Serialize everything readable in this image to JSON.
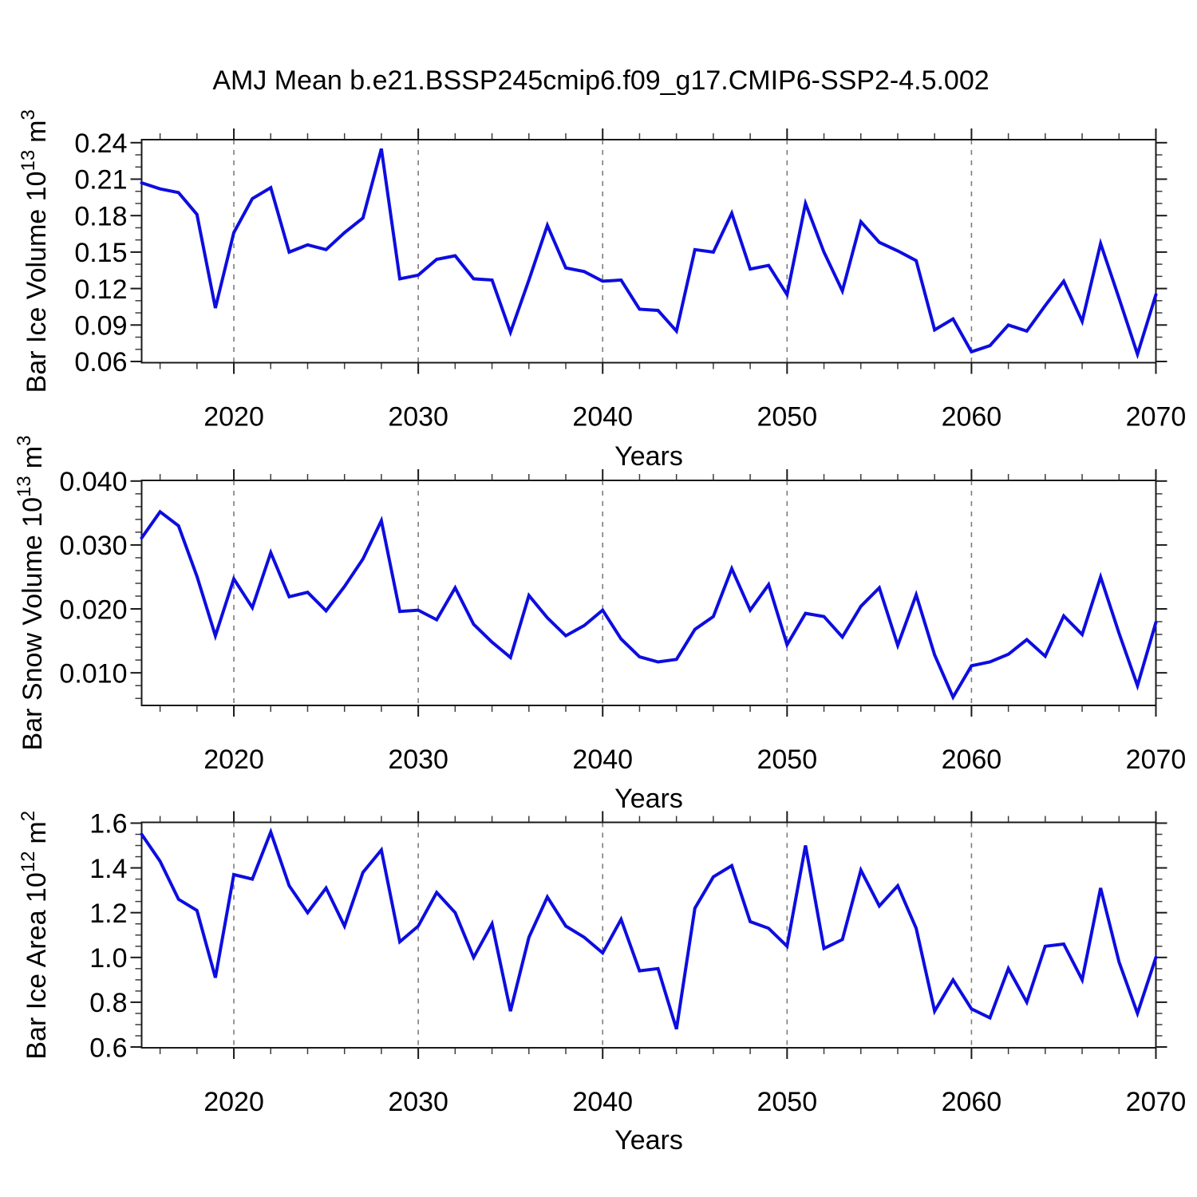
{
  "title": "AMJ Mean b.e21.BSSP245cmip6.f09_g17.CMIP6-SSP2-4.5.002",
  "style": {
    "line_color": "#0d0de0",
    "axis_color": "#1a1a1a",
    "grid_color": "#7d7d7d",
    "background": "#ffffff"
  },
  "x_axis": {
    "label": "Years",
    "range": [
      2015,
      2070
    ],
    "major_ticks": [
      2020,
      2030,
      2040,
      2050,
      2060,
      2070
    ],
    "major_tick_labels": [
      "2020",
      "2030",
      "2040",
      "2050",
      "2060",
      "2070"
    ],
    "minor_tick_step": 2,
    "gridline_years": [
      2020,
      2030,
      2040,
      2050,
      2060
    ]
  },
  "chart_data": [
    {
      "type": "line",
      "id": "bar-ice-volume",
      "ylabel": {
        "prefix": "Bar Ice Volume 10",
        "sup1": "13",
        "unit": "m",
        "unit_sup": "3",
        "plain": "Bar Ice Volume 10^13 m^3"
      },
      "xlabel": "Years",
      "ylim": [
        0.059,
        0.2425
      ],
      "ytick_values": [
        0.06,
        0.09,
        0.12,
        0.15,
        0.18,
        0.21,
        0.24
      ],
      "ytick_labels": [
        "0.06",
        "0.09",
        "0.12",
        "0.15",
        "0.18",
        "0.21",
        "0.24"
      ],
      "yminor_step": 0.01,
      "x": [
        2015,
        2016,
        2017,
        2018,
        2019,
        2020,
        2021,
        2022,
        2023,
        2024,
        2025,
        2026,
        2027,
        2028,
        2029,
        2030,
        2031,
        2032,
        2033,
        2034,
        2035,
        2036,
        2037,
        2038,
        2039,
        2040,
        2041,
        2042,
        2043,
        2044,
        2045,
        2046,
        2047,
        2048,
        2049,
        2050,
        2051,
        2052,
        2053,
        2054,
        2055,
        2056,
        2057,
        2058,
        2059,
        2060,
        2061,
        2062,
        2063,
        2064,
        2065,
        2066,
        2067,
        2068,
        2069,
        2070
      ],
      "values": [
        0.207,
        0.202,
        0.199,
        0.181,
        0.104,
        0.166,
        0.194,
        0.203,
        0.15,
        0.156,
        0.152,
        0.166,
        0.178,
        0.235,
        0.128,
        0.131,
        0.144,
        0.147,
        0.128,
        0.127,
        0.084,
        0.127,
        0.172,
        0.137,
        0.134,
        0.126,
        0.127,
        0.103,
        0.102,
        0.085,
        0.152,
        0.15,
        0.182,
        0.136,
        0.139,
        0.115,
        0.19,
        0.15,
        0.118,
        0.175,
        0.158,
        0.151,
        0.143,
        0.086,
        0.095,
        0.068,
        0.073,
        0.09,
        0.085,
        0.106,
        0.126,
        0.093,
        0.157,
        0.112,
        0.066,
        0.115
      ]
    },
    {
      "type": "line",
      "id": "bar-snow-volume",
      "ylabel": {
        "prefix": "Bar Snow Volume 10",
        "sup1": "13",
        "unit": "m",
        "unit_sup": "3",
        "plain": "Bar Snow Volume 10^13 m^3"
      },
      "xlabel": "Years",
      "ylim": [
        0.0049,
        0.0401
      ],
      "ytick_values": [
        0.01,
        0.02,
        0.03,
        0.04
      ],
      "ytick_labels": [
        "0.010",
        "0.020",
        "0.030",
        "0.040"
      ],
      "yminor_step": 0.002,
      "x": [
        2015,
        2016,
        2017,
        2018,
        2019,
        2020,
        2021,
        2022,
        2023,
        2024,
        2025,
        2026,
        2027,
        2028,
        2029,
        2030,
        2031,
        2032,
        2033,
        2034,
        2035,
        2036,
        2037,
        2038,
        2039,
        2040,
        2041,
        2042,
        2043,
        2044,
        2045,
        2046,
        2047,
        2048,
        2049,
        2050,
        2051,
        2052,
        2053,
        2054,
        2055,
        2056,
        2057,
        2058,
        2059,
        2060,
        2061,
        2062,
        2063,
        2064,
        2065,
        2066,
        2067,
        2068,
        2069,
        2070
      ],
      "values": [
        0.0311,
        0.0352,
        0.033,
        0.0251,
        0.0158,
        0.0247,
        0.0202,
        0.0288,
        0.0219,
        0.0226,
        0.0197,
        0.0235,
        0.0278,
        0.0338,
        0.0196,
        0.0198,
        0.0183,
        0.0233,
        0.0176,
        0.0148,
        0.0124,
        0.0221,
        0.0186,
        0.0158,
        0.0174,
        0.0198,
        0.0153,
        0.0125,
        0.0117,
        0.0121,
        0.0168,
        0.0188,
        0.0263,
        0.0198,
        0.0238,
        0.0144,
        0.0193,
        0.0188,
        0.0156,
        0.0204,
        0.0233,
        0.0143,
        0.0222,
        0.0128,
        0.0062,
        0.0111,
        0.0117,
        0.0129,
        0.0152,
        0.0126,
        0.0189,
        0.016,
        0.025,
        0.0162,
        0.008,
        0.0179
      ]
    },
    {
      "type": "line",
      "id": "bar-ice-area",
      "ylabel": {
        "prefix": "Bar Ice Area 10",
        "sup1": "12",
        "unit": "m",
        "unit_sup": "2",
        "plain": "Bar Ice Area 10^12 m^2"
      },
      "xlabel": "Years",
      "ylim": [
        0.5965,
        1.6035
      ],
      "ytick_values": [
        0.6,
        0.8,
        1.0,
        1.2,
        1.4,
        1.6
      ],
      "ytick_labels": [
        "0.6",
        "0.8",
        "1.0",
        "1.2",
        "1.4",
        "1.6"
      ],
      "yminor_step": 0.05,
      "x": [
        2015,
        2016,
        2017,
        2018,
        2019,
        2020,
        2021,
        2022,
        2023,
        2024,
        2025,
        2026,
        2027,
        2028,
        2029,
        2030,
        2031,
        2032,
        2033,
        2034,
        2035,
        2036,
        2037,
        2038,
        2039,
        2040,
        2041,
        2042,
        2043,
        2044,
        2045,
        2046,
        2047,
        2048,
        2049,
        2050,
        2051,
        2052,
        2053,
        2054,
        2055,
        2056,
        2057,
        2058,
        2059,
        2060,
        2061,
        2062,
        2063,
        2064,
        2065,
        2066,
        2067,
        2068,
        2069,
        2070
      ],
      "values": [
        1.55,
        1.43,
        1.26,
        1.21,
        0.91,
        1.37,
        1.35,
        1.56,
        1.32,
        1.2,
        1.31,
        1.14,
        1.38,
        1.48,
        1.07,
        1.14,
        1.29,
        1.2,
        1.0,
        1.15,
        0.76,
        1.09,
        1.27,
        1.14,
        1.09,
        1.02,
        1.17,
        0.94,
        0.95,
        0.68,
        1.22,
        1.36,
        1.41,
        1.16,
        1.13,
        1.05,
        1.5,
        1.04,
        1.08,
        1.39,
        1.23,
        1.32,
        1.13,
        0.76,
        0.9,
        0.77,
        0.73,
        0.95,
        0.8,
        1.05,
        1.06,
        0.9,
        1.31,
        0.98,
        0.75,
        1.0
      ]
    }
  ]
}
